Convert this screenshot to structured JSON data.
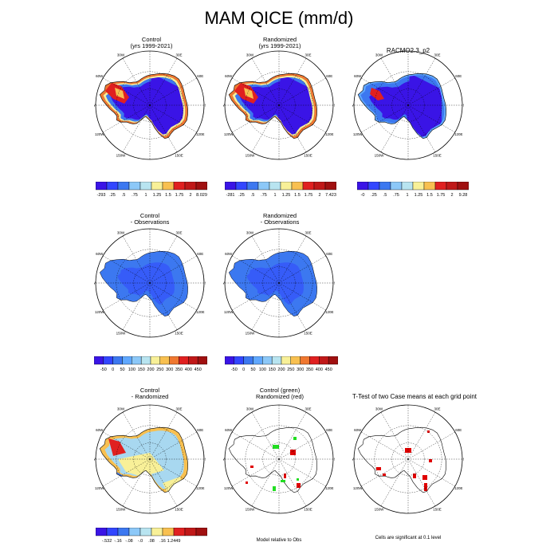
{
  "title": "MAM QICE (mm/d)",
  "colors": {
    "ice_ramp": [
      "#3a14e6",
      "#3246ff",
      "#3c78f0",
      "#60a8ff",
      "#a8d8f0",
      "#f8f098",
      "#f8c050",
      "#f07830",
      "#e02020",
      "#c01818"
    ],
    "diff_ramp": [
      "#3a14e6",
      "#3246ff",
      "#3c78f0",
      "#60a8ff",
      "#a8d8f0",
      "#f8f098",
      "#f8c050",
      "#f07830",
      "#e02020",
      "#c01818"
    ],
    "sig_green": "#22dd22",
    "sig_red": "#e00000",
    "coast": "#000000"
  },
  "longitude_labels": [
    "0",
    "30E",
    "60E",
    "90E",
    "120E",
    "150E",
    "180",
    "150W",
    "120W",
    "90W",
    "60W",
    "30W"
  ],
  "chart_data": [
    {
      "type": "heatmap",
      "panel": "control",
      "title_lines": [
        "Control",
        "(yrs 1999-2021)"
      ],
      "colorbar": [
        "-293",
        ".25",
        ".5",
        ".75",
        "1",
        "1.25",
        "1.5",
        "1.75",
        "2",
        "8.029"
      ]
    },
    {
      "type": "heatmap",
      "panel": "randomized",
      "title_lines": [
        "Randomized",
        "(yrs 1999-2021)"
      ],
      "colorbar": [
        "-281",
        ".25",
        ".5",
        ".75",
        "1",
        "1.25",
        "1.5",
        "1.75",
        "2",
        "7.423"
      ]
    },
    {
      "type": "heatmap",
      "panel": "racmo",
      "title_lines": [
        "RACMO2.3_p2"
      ],
      "colorbar": [
        "-0",
        ".25",
        ".5",
        ".75",
        "1",
        "1.25",
        "1.5",
        "1.75",
        "2",
        "9.28"
      ]
    },
    {
      "type": "heatmap",
      "panel": "control-minus-obs",
      "title_lines": [
        "Control",
        "- Observations"
      ],
      "colorbar": [
        "-50",
        "0",
        "50",
        "100",
        "150",
        "200",
        "250",
        "300",
        "350",
        "400",
        "450"
      ]
    },
    {
      "type": "heatmap",
      "panel": "randomized-minus-obs",
      "title_lines": [
        "Randomized",
        "- Observations"
      ],
      "colorbar": [
        "-50",
        "0",
        "50",
        "100",
        "150",
        "200",
        "250",
        "300",
        "350",
        "400",
        "450"
      ]
    },
    {
      "type": "heatmap",
      "panel": "control-minus-randomized",
      "title_lines": [
        "Control",
        "- Randomized"
      ],
      "colorbar": [
        "-.532",
        "-.16",
        "-.08",
        "-.0",
        ".08",
        ".16",
        "1.2449"
      ]
    },
    {
      "type": "heatmap",
      "panel": "significance-green-red",
      "title_lines": [
        "Control (green)",
        "Randomized (red)"
      ],
      "footnote": "Model relative to Obs"
    },
    {
      "type": "heatmap",
      "panel": "t-test",
      "title_lines": [
        "T-Test of two Case means at each grid point"
      ],
      "footnote": "Cells are significant at 0.1 level"
    }
  ]
}
